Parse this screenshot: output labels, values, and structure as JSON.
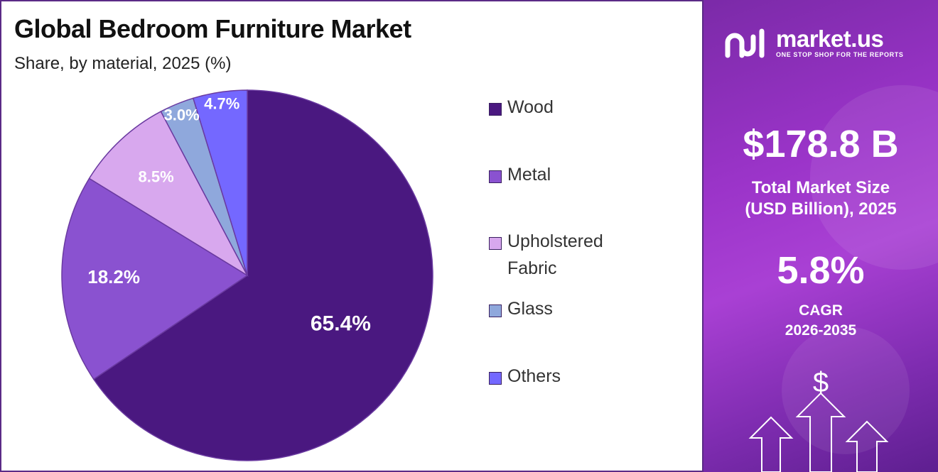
{
  "chart": {
    "title": "Global Bedroom Furniture Market",
    "subtitle": "Share, by material, 2025 (%)"
  },
  "chart_data": {
    "type": "pie",
    "title": "Global Bedroom Furniture Market",
    "subtitle": "Share, by material, 2025 (%)",
    "categories": [
      "Wood",
      "Metal",
      "Upholstered Fabric",
      "Glass",
      "Others"
    ],
    "values": [
      65.4,
      18.2,
      8.5,
      3.0,
      4.7
    ],
    "value_labels": [
      "65.4%",
      "18.2%",
      "8.5%",
      "3.0%",
      "4.7%"
    ],
    "colors": [
      "#4a1880",
      "#8a52d0",
      "#d8a8ee",
      "#8fa8dc",
      "#7468ff"
    ],
    "legend_position": "right",
    "start": "12 o'clock, clockwise"
  },
  "legend": {
    "items": [
      {
        "label": "Wood",
        "color": "#4a1880"
      },
      {
        "label": "Metal",
        "color": "#8a52d0"
      },
      {
        "label": "Upholstered Fabric",
        "color": "#d8a8ee"
      },
      {
        "label": "Glass",
        "color": "#8fa8dc"
      },
      {
        "label": "Others",
        "color": "#7468ff"
      }
    ]
  },
  "brand": {
    "name": "market.us",
    "tagline": "ONE STOP SHOP FOR THE REPORTS"
  },
  "stats": {
    "market_size": "$178.8 B",
    "market_size_label_line1": "Total Market Size",
    "market_size_label_line2": "(USD Billion), 2025",
    "cagr": "5.8%",
    "cagr_label_line1": "CAGR",
    "cagr_label_line2": "2026-2035"
  },
  "icons": {
    "brand_logo": "market-us-logo-icon",
    "dollar_sign": "$",
    "growth_arrows": "growth-arrows-icon"
  },
  "theme": {
    "panel_border": "#5b2a86",
    "info_panel": "#9b34c9"
  }
}
